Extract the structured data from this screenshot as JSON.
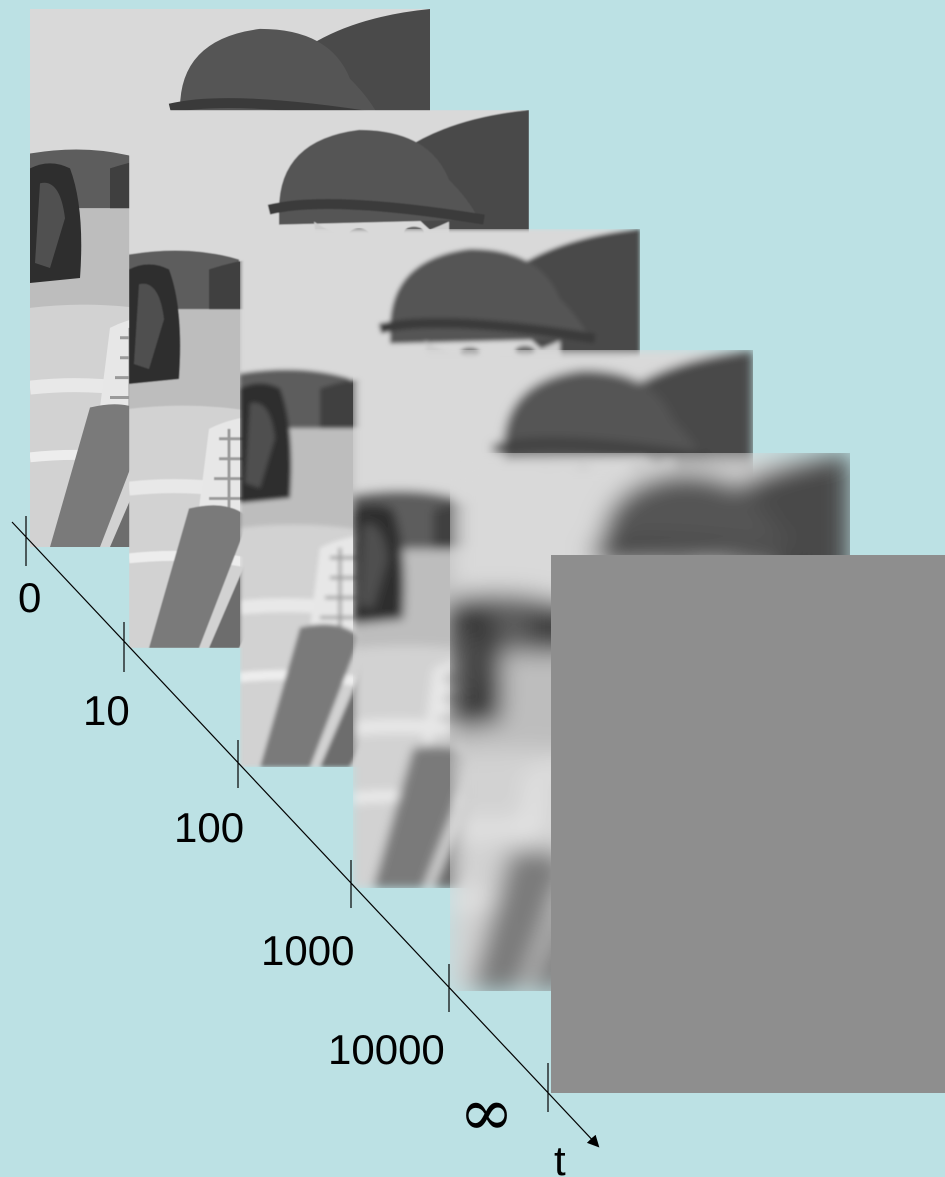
{
  "figure": {
    "background_color": "#bce1e4",
    "frame_final_color": "#8e8e8e"
  },
  "axis": {
    "variable_label": "t",
    "ticks": [
      {
        "label": "0"
      },
      {
        "label": "10"
      },
      {
        "label": "100"
      },
      {
        "label": "1000"
      },
      {
        "label": "10000"
      },
      {
        "label": "∞"
      }
    ]
  },
  "frames": [
    {
      "scale": "0",
      "blur": 0
    },
    {
      "scale": "10",
      "blur": 0.6
    },
    {
      "scale": "100",
      "blur": 2.2
    },
    {
      "scale": "1000",
      "blur": 5
    },
    {
      "scale": "10000",
      "blur": 12
    },
    {
      "scale": "∞",
      "blur": 0
    }
  ]
}
